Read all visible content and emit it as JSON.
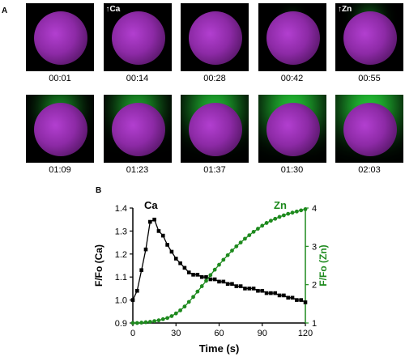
{
  "panel_a_label": "A",
  "panel_b_label": "B",
  "frames": [
    {
      "time": "00:01",
      "zn": 0,
      "tag": ""
    },
    {
      "time": "00:14",
      "zn": 0,
      "tag": "↑Ca"
    },
    {
      "time": "00:28",
      "zn": 0,
      "tag": ""
    },
    {
      "time": "00:42",
      "zn": 0.02,
      "tag": ""
    },
    {
      "time": "00:55",
      "zn": 0.25,
      "tag": "↑Zn"
    },
    {
      "time": "01:09",
      "zn": 0.55,
      "tag": ""
    },
    {
      "time": "01:23",
      "zn": 0.7,
      "tag": ""
    },
    {
      "time": "01:37",
      "zn": 0.85,
      "tag": ""
    },
    {
      "time": "01:30",
      "zn": 0.95,
      "tag": ""
    },
    {
      "time": "02:03",
      "zn": 1.0,
      "tag": ""
    }
  ],
  "colors": {
    "ca": "#000000",
    "zn": "#1e8a1e",
    "cell": "#9b30b8",
    "fluor": "#2fdc45"
  },
  "chart_data": {
    "type": "line",
    "xlabel": "Time (s)",
    "ylabel_left": "F/Fo (Ca)",
    "ylabel_right": "F/Fo (Zn)",
    "xlim": [
      0,
      120
    ],
    "ylim_left": [
      0.9,
      1.4
    ],
    "ylim_right": [
      1,
      4
    ],
    "xticks": [
      "0",
      "30",
      "60",
      "90",
      "120"
    ],
    "yticks_left": [
      "0.9",
      "1.0",
      "1.1",
      "1.2",
      "1.3",
      "1.4"
    ],
    "yticks_right": [
      "1",
      "2",
      "3",
      "4"
    ],
    "series": [
      {
        "name": "Ca",
        "axis": "left",
        "x": [
          0,
          3,
          6,
          9,
          12,
          15,
          18,
          21,
          24,
          27,
          30,
          33,
          36,
          39,
          42,
          45,
          48,
          51,
          54,
          57,
          60,
          63,
          66,
          69,
          72,
          75,
          78,
          81,
          84,
          87,
          90,
          93,
          96,
          99,
          102,
          105,
          108,
          111,
          114,
          117,
          120
        ],
        "y": [
          1.0,
          1.04,
          1.13,
          1.22,
          1.34,
          1.35,
          1.3,
          1.28,
          1.24,
          1.21,
          1.18,
          1.16,
          1.14,
          1.12,
          1.11,
          1.11,
          1.1,
          1.1,
          1.09,
          1.09,
          1.08,
          1.08,
          1.07,
          1.07,
          1.06,
          1.06,
          1.05,
          1.05,
          1.05,
          1.04,
          1.04,
          1.03,
          1.03,
          1.03,
          1.02,
          1.02,
          1.01,
          1.01,
          1.0,
          1.0,
          0.99
        ]
      },
      {
        "name": "Zn",
        "axis": "right",
        "x": [
          0,
          3,
          6,
          9,
          12,
          15,
          18,
          21,
          24,
          27,
          30,
          33,
          36,
          39,
          42,
          45,
          48,
          51,
          54,
          57,
          60,
          63,
          66,
          69,
          72,
          75,
          78,
          81,
          84,
          87,
          90,
          93,
          96,
          99,
          102,
          105,
          108,
          111,
          114,
          117,
          120
        ],
        "y": [
          1.0,
          1.0,
          1.01,
          1.02,
          1.03,
          1.05,
          1.07,
          1.1,
          1.13,
          1.18,
          1.25,
          1.33,
          1.43,
          1.55,
          1.68,
          1.82,
          1.96,
          2.1,
          2.25,
          2.39,
          2.52,
          2.65,
          2.77,
          2.89,
          3.0,
          3.1,
          3.2,
          3.29,
          3.38,
          3.46,
          3.54,
          3.61,
          3.67,
          3.72,
          3.77,
          3.81,
          3.85,
          3.88,
          3.91,
          3.94,
          3.97
        ]
      }
    ]
  }
}
